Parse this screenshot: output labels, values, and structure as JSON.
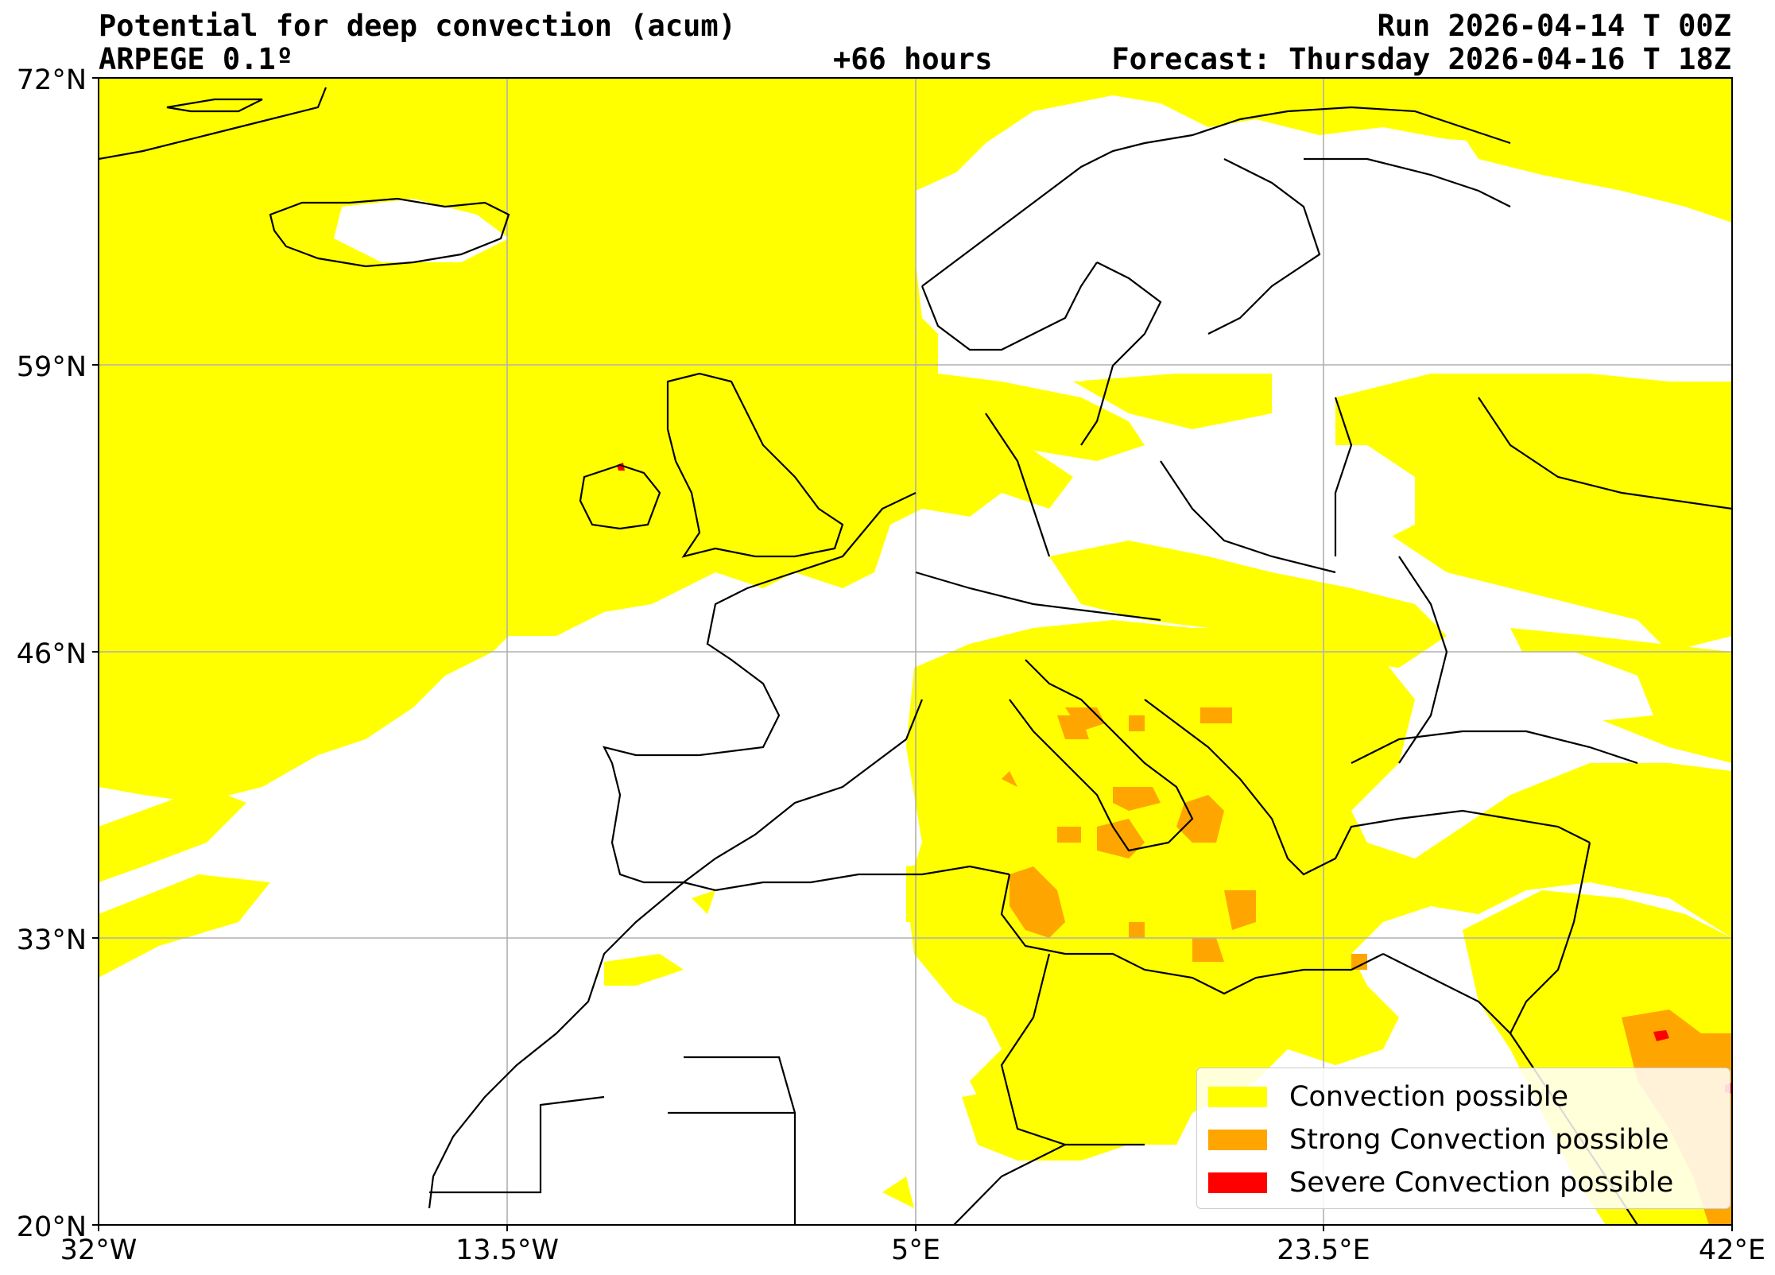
{
  "header": {
    "title": "Potential for deep convection (acum)",
    "model": "ARPEGE 0.1º",
    "lead_time": "+66 hours",
    "run": "Run 2026-04-14 T 00Z",
    "forecast": "Forecast: Thursday 2026-04-16 T 18Z"
  },
  "axes": {
    "lat_labels": [
      "72°N",
      "59°N",
      "46°N",
      "33°N",
      "20°N"
    ],
    "lon_labels": [
      "32°W",
      "13.5°W",
      "5°E",
      "23.5°E",
      "42°E"
    ],
    "grid": true
  },
  "legend": {
    "placement": "bottom-right",
    "items": [
      {
        "label": "Convection possible",
        "color": "#ffff00"
      },
      {
        "label": "Strong Convection possible",
        "color": "#ffa500"
      },
      {
        "label": "Severe Convection possible",
        "color": "#ff0000"
      }
    ]
  },
  "colors": {
    "convection": "#ffff00",
    "strong": "#ffa500",
    "severe": "#ff0000",
    "coast": "#000000",
    "grid": "#b0b0b0"
  }
}
